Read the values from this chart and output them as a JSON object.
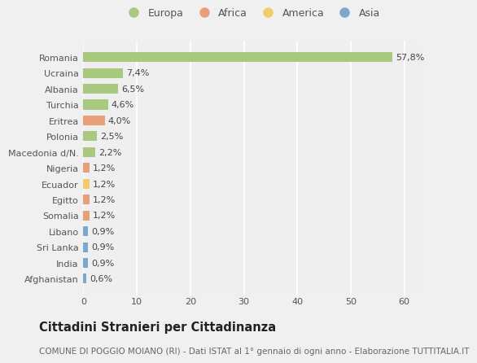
{
  "countries": [
    "Romania",
    "Ucraina",
    "Albania",
    "Turchia",
    "Eritrea",
    "Polonia",
    "Macedonia d/N.",
    "Nigeria",
    "Ecuador",
    "Egitto",
    "Somalia",
    "Libano",
    "Sri Lanka",
    "India",
    "Afghanistan"
  ],
  "values": [
    57.8,
    7.4,
    6.5,
    4.6,
    4.0,
    2.5,
    2.2,
    1.2,
    1.2,
    1.2,
    1.2,
    0.9,
    0.9,
    0.9,
    0.6
  ],
  "labels": [
    "57,8%",
    "7,4%",
    "6,5%",
    "4,6%",
    "4,0%",
    "2,5%",
    "2,2%",
    "1,2%",
    "1,2%",
    "1,2%",
    "1,2%",
    "0,9%",
    "0,9%",
    "0,9%",
    "0,6%"
  ],
  "continents": [
    "Europa",
    "Europa",
    "Europa",
    "Europa",
    "Africa",
    "Europa",
    "Europa",
    "Africa",
    "America",
    "Africa",
    "Africa",
    "Asia",
    "Asia",
    "Asia",
    "Asia"
  ],
  "continent_colors": {
    "Europa": "#a8c97f",
    "Africa": "#e8a07a",
    "America": "#f0cc6a",
    "Asia": "#7ba8cc"
  },
  "legend_order": [
    "Europa",
    "Africa",
    "America",
    "Asia"
  ],
  "title": "Cittadini Stranieri per Cittadinanza",
  "subtitle": "COMUNE DI POGGIO MOIANO (RI) - Dati ISTAT al 1° gennaio di ogni anno - Elaborazione TUTTITALIA.IT",
  "xlim": [
    0,
    63
  ],
  "xticks": [
    0,
    10,
    20,
    30,
    40,
    50,
    60
  ],
  "bg_color": "#f0f0f0",
  "plot_bg_color": "#efefef",
  "grid_color": "#ffffff",
  "bar_height": 0.62,
  "label_fontsize": 8.0,
  "title_fontsize": 10.5,
  "subtitle_fontsize": 7.5,
  "ytick_fontsize": 8.0,
  "xtick_fontsize": 8.0,
  "legend_fontsize": 9.0
}
